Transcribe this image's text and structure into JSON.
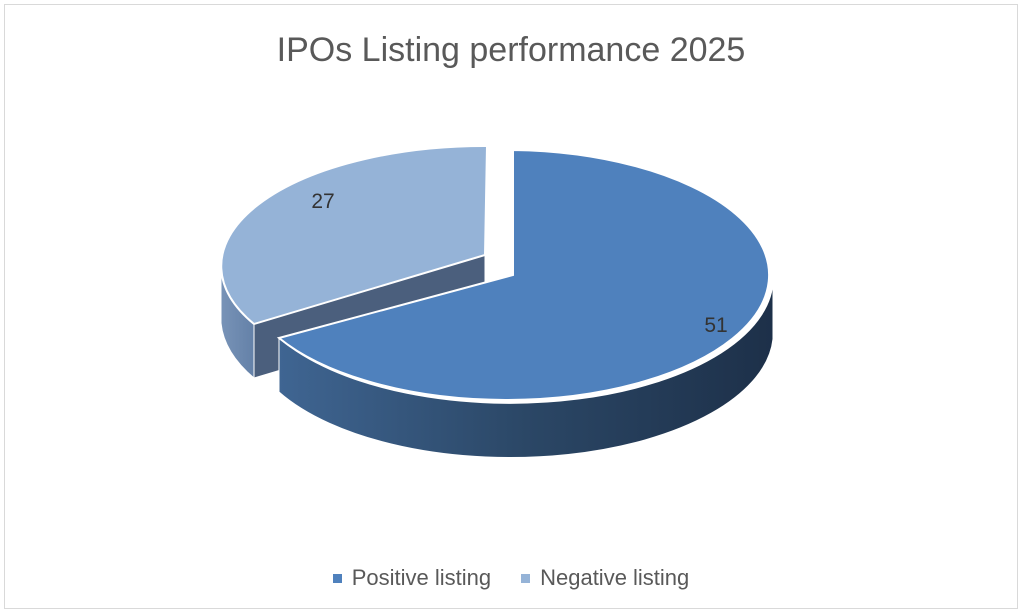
{
  "chart_data": {
    "type": "pie",
    "title": "IPOs Listing performance 2025",
    "categories": [
      "Positive listing",
      "Negative listing"
    ],
    "values": [
      51,
      27
    ],
    "colors": [
      "#4f81bd",
      "#95b3d7"
    ],
    "legend_position": "bottom",
    "style": "3d-exploded"
  }
}
